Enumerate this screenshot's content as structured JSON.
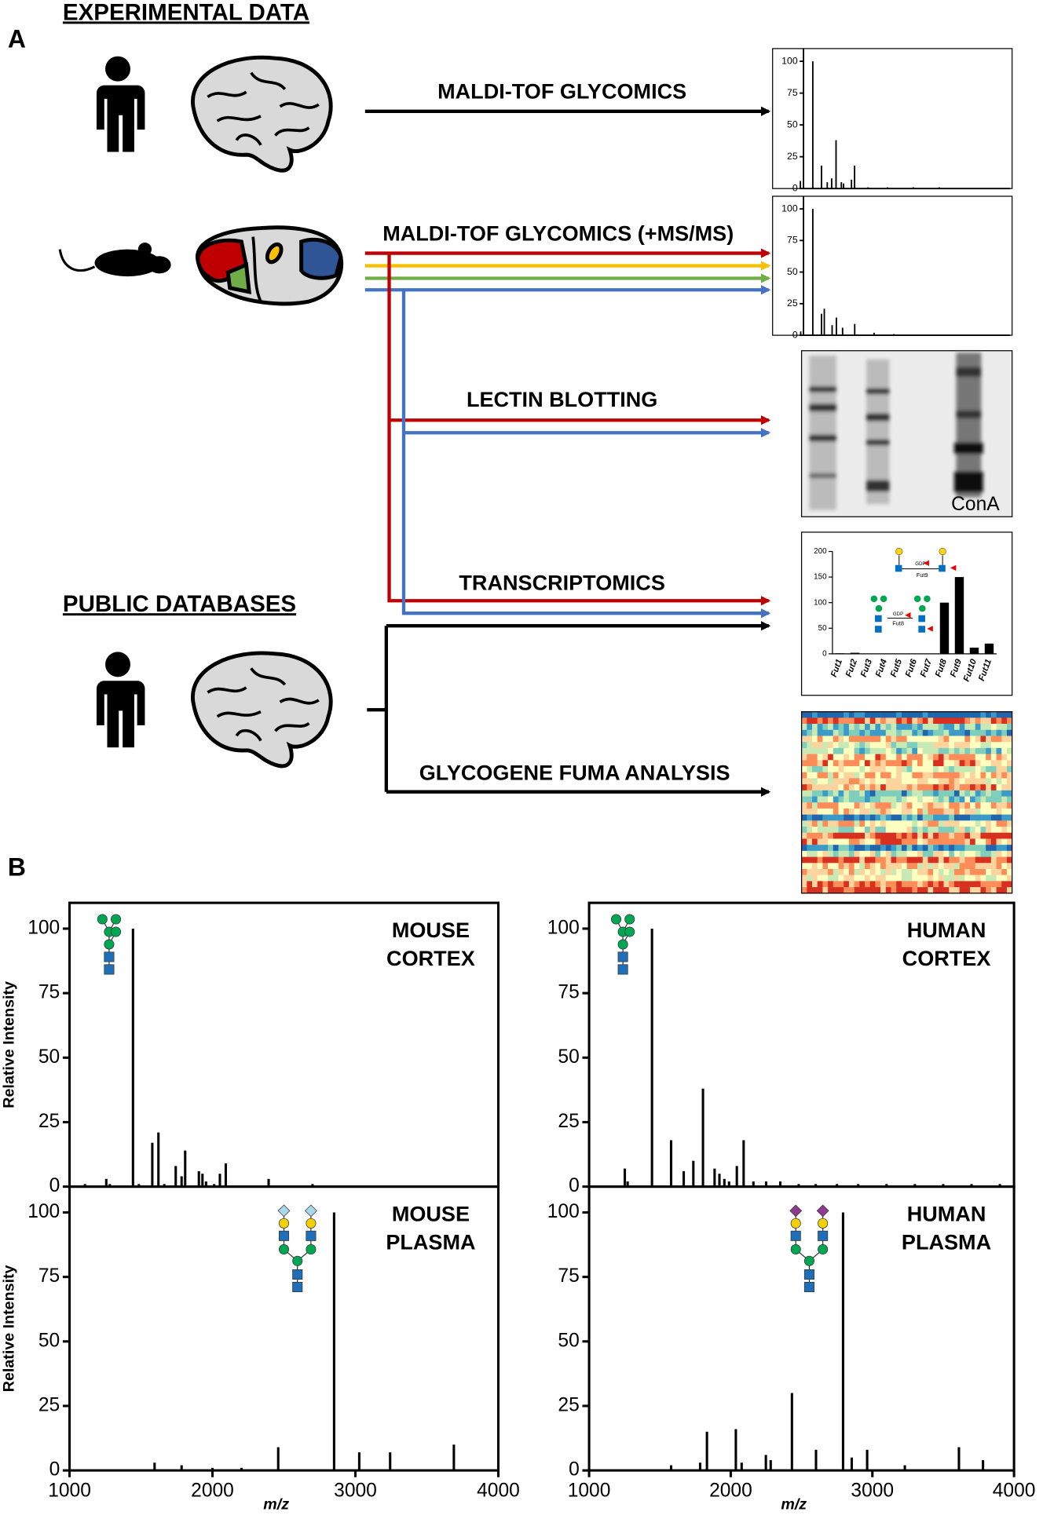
{
  "panel_labels": [
    "A",
    "B"
  ],
  "headings": [
    "EXPERIMENTAL DATA",
    "PUBLIC DATABASES"
  ],
  "arrows": [
    "MALDI-TOF GLYCOMICS",
    "MALDI-TOF GLYCOMICS (+MS/MS)",
    "LECTIN BLOTTING",
    "TRANSCRIPTOMICS",
    "GLYCOGENE FUMA ANALYSIS"
  ],
  "lectin_blot": {
    "label": "ConA"
  },
  "transcriptomics_inset": [
    "GDP",
    "Fut9",
    "GDP",
    "Fut8"
  ],
  "chart_data": [
    {
      "type": "spectrum",
      "color": "#000000",
      "xlim": [
        1300,
        4500
      ],
      "ylim": [
        0,
        110
      ],
      "yticks": [
        0,
        25,
        50,
        75,
        100
      ],
      "x": [
        1252,
        1444,
        1579,
        1668,
        1736,
        1804,
        1886,
        1920,
        2043,
        2091,
        2300,
        2600,
        3000,
        3400
      ],
      "values": [
        6,
        100,
        18,
        5,
        8,
        38,
        5,
        4,
        7,
        18,
        1,
        1,
        1,
        1
      ]
    },
    {
      "type": "spectrum",
      "color": "#000000",
      "xlim": [
        1300,
        4500
      ],
      "ylim": [
        0,
        110
      ],
      "yticks": [
        0,
        25,
        50,
        75,
        100
      ],
      "x": [
        1257,
        1444,
        1579,
        1622,
        1743,
        1809,
        1905,
        2093,
        2393,
        2700
      ],
      "values": [
        3,
        100,
        17,
        21,
        8,
        14,
        6,
        9,
        2,
        1
      ]
    },
    {
      "type": "bar",
      "color": "#000000",
      "ylim": [
        0,
        200
      ],
      "yticks": [
        0,
        50,
        100,
        150,
        200
      ],
      "categories": [
        "Fut1",
        "Fut2",
        "Fut3",
        "Fut4",
        "Fut5",
        "Fut6",
        "Fut7",
        "Fut8",
        "Fut9",
        "Fut10",
        "Fut11"
      ],
      "values": [
        1,
        2,
        0,
        0,
        0,
        0,
        0,
        100,
        150,
        12,
        20
      ]
    },
    {
      "type": "spectrum",
      "color": "#000000",
      "title": [
        "MOUSE",
        "CORTEX"
      ],
      "ylabel": "Relative Intensity",
      "xlim": [
        1000,
        4000
      ],
      "ylim": [
        0,
        110
      ],
      "yticks": [
        0,
        25,
        50,
        75,
        100
      ],
      "x": [
        1108,
        1257,
        1282,
        1444,
        1485,
        1579,
        1622,
        1663,
        1743,
        1784,
        1809,
        1905,
        1930,
        1955,
        2012,
        2052,
        2093,
        2393,
        2700
      ],
      "values": [
        1,
        3,
        1,
        100,
        1,
        17,
        21,
        1,
        8,
        4,
        14,
        6,
        5,
        2,
        1,
        5,
        9,
        3,
        1
      ]
    },
    {
      "type": "spectrum",
      "color": "#000000",
      "title": [
        "HUMAN",
        "CORTEX"
      ],
      "xlim": [
        1000,
        4000
      ],
      "ylim": [
        0,
        110
      ],
      "yticks": [
        0,
        25,
        50,
        75,
        100
      ],
      "x": [
        1252,
        1272,
        1444,
        1579,
        1668,
        1736,
        1804,
        1886,
        1920,
        1955,
        1988,
        2043,
        2091,
        2160,
        2250,
        2350,
        2480,
        2600,
        2750,
        2900,
        3100,
        3300,
        3500,
        3700,
        3900
      ],
      "values": [
        7,
        2,
        100,
        18,
        6,
        10,
        38,
        7,
        5,
        3,
        2,
        8,
        18,
        2,
        2,
        2,
        1,
        1,
        1,
        1,
        1,
        1,
        1,
        1,
        1
      ]
    },
    {
      "type": "spectrum",
      "color": "#000000",
      "title": [
        "MOUSE",
        "PLASMA"
      ],
      "ylabel": "Relative Intensity",
      "xlabel": "m/z",
      "xlim": [
        1000,
        4000
      ],
      "ylim": [
        0,
        110
      ],
      "yticks": [
        0,
        25,
        50,
        75,
        100
      ],
      "xticks": [
        1000,
        2000,
        3000,
        4000
      ],
      "x": [
        1595,
        1784,
        2000,
        2203,
        2460,
        2851,
        3027,
        3243,
        3689
      ],
      "values": [
        3,
        2,
        1,
        1,
        9,
        100,
        7,
        7,
        10
      ]
    },
    {
      "type": "spectrum",
      "color": "#000000",
      "title": [
        "HUMAN",
        "PLASMA"
      ],
      "xlabel": "m/z",
      "xlim": [
        1000,
        4000
      ],
      "ylim": [
        0,
        110
      ],
      "yticks": [
        0,
        25,
        50,
        75,
        100
      ],
      "xticks": [
        1000,
        2000,
        3000,
        4000
      ],
      "x": [
        1579,
        1784,
        1832,
        2036,
        2077,
        2248,
        2282,
        2432,
        2602,
        2793,
        2854,
        2963,
        3229,
        3611,
        3781
      ],
      "values": [
        2,
        3,
        15,
        16,
        3,
        6,
        4,
        30,
        8,
        100,
        5,
        8,
        2,
        9,
        4
      ]
    }
  ]
}
